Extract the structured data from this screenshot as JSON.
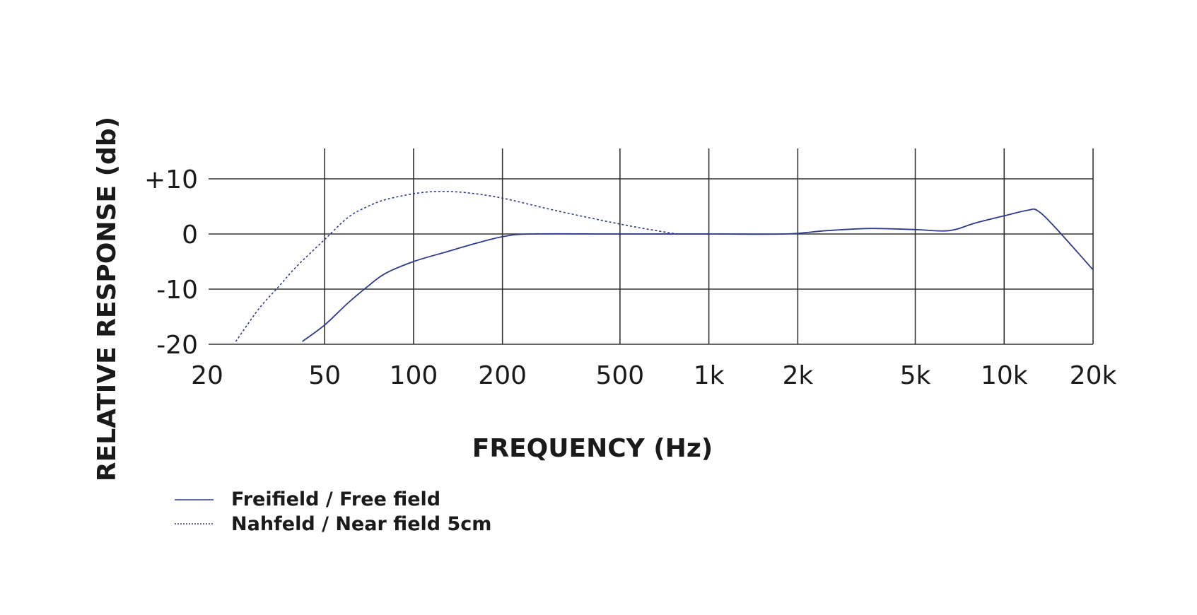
{
  "chart_data": {
    "type": "line",
    "xscale": "log",
    "xlim": [
      20,
      20000
    ],
    "ylim": [
      -20,
      10
    ],
    "grid": true,
    "xlabel": "FREQUENCY (Hz)",
    "ylabel": "RELATIVE RESPONSE (db)",
    "x_ticks": [
      {
        "value": 20,
        "label": "20"
      },
      {
        "value": 50,
        "label": "50"
      },
      {
        "value": 100,
        "label": "100"
      },
      {
        "value": 200,
        "label": "200"
      },
      {
        "value": 500,
        "label": "500"
      },
      {
        "value": 1000,
        "label": "1k"
      },
      {
        "value": 2000,
        "label": "2k"
      },
      {
        "value": 5000,
        "label": "5k"
      },
      {
        "value": 10000,
        "label": "10k"
      },
      {
        "value": 20000,
        "label": "20k"
      }
    ],
    "y_ticks": [
      {
        "value": 10,
        "label": "+10"
      },
      {
        "value": 0,
        "label": "0"
      },
      {
        "value": -10,
        "label": "-10"
      },
      {
        "value": -20,
        "label": "-20"
      }
    ],
    "legend_position": "bottom-left",
    "series": [
      {
        "name": "Freifield / Free field",
        "style": "solid",
        "color": "#2e3a8c",
        "points": [
          [
            42,
            -19.5
          ],
          [
            50,
            -16.5
          ],
          [
            60,
            -12.5
          ],
          [
            70,
            -9.5
          ],
          [
            80,
            -7.2
          ],
          [
            100,
            -5.0
          ],
          [
            130,
            -3.2
          ],
          [
            160,
            -1.8
          ],
          [
            200,
            -0.5
          ],
          [
            250,
            0.0
          ],
          [
            500,
            0.0
          ],
          [
            1000,
            0.0
          ],
          [
            1800,
            0.0
          ],
          [
            2500,
            0.6
          ],
          [
            3500,
            1.0
          ],
          [
            5000,
            0.8
          ],
          [
            6500,
            0.6
          ],
          [
            8000,
            2.0
          ],
          [
            10000,
            3.3
          ],
          [
            12000,
            4.3
          ],
          [
            13000,
            4.2
          ],
          [
            15000,
            1.0
          ],
          [
            20000,
            -6.5
          ]
        ]
      },
      {
        "name": "Nahfeld / Near field 5cm",
        "style": "dotted",
        "color": "#2e3a8c",
        "points": [
          [
            25,
            -19.5
          ],
          [
            30,
            -13.5
          ],
          [
            35,
            -9.5
          ],
          [
            40,
            -6.0
          ],
          [
            50,
            -1.0
          ],
          [
            60,
            3.0
          ],
          [
            70,
            5.0
          ],
          [
            80,
            6.2
          ],
          [
            100,
            7.3
          ],
          [
            120,
            7.7
          ],
          [
            150,
            7.5
          ],
          [
            200,
            6.5
          ],
          [
            300,
            4.3
          ],
          [
            500,
            1.8
          ],
          [
            700,
            0.4
          ],
          [
            800,
            0.0
          ],
          [
            1000,
            0.0
          ]
        ]
      }
    ]
  }
}
